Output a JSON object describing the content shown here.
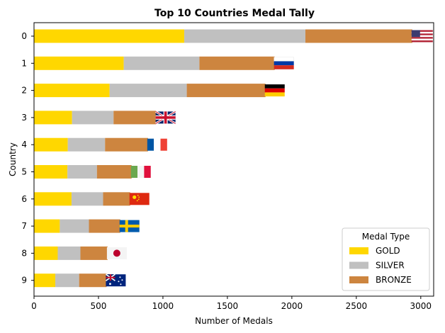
{
  "chart_data": {
    "type": "bar",
    "orientation": "horizontal",
    "stacked": true,
    "title": "Top 10 Countries Medal Tally",
    "xlabel": "Number of Medals",
    "ylabel": "Country",
    "xlim": [
      0,
      3100
    ],
    "xticks": [
      0,
      500,
      1000,
      1500,
      2000,
      2500,
      3000
    ],
    "categories": [
      "0",
      "1",
      "2",
      "3",
      "4",
      "5",
      "6",
      "7",
      "8",
      "9"
    ],
    "series": [
      {
        "name": "GOLD",
        "color": "#FFD700",
        "values": [
          1165,
          696,
          586,
          295,
          262,
          259,
          291,
          200,
          184,
          165
        ]
      },
      {
        "name": "SILVER",
        "color": "#C0C0C0",
        "values": [
          940,
          587,
          599,
          322,
          289,
          229,
          245,
          226,
          176,
          185
        ]
      },
      {
        "name": "BRONZE",
        "color": "#CD853F",
        "values": [
          829,
          584,
          611,
          332,
          333,
          269,
          210,
          243,
          211,
          213
        ]
      }
    ],
    "flags": [
      "us-flag",
      "russia-flag",
      "germany-flag",
      "uk-flag",
      "france-flag",
      "italy-flag",
      "china-flag",
      "sweden-flag",
      "japan-flag",
      "australia-flag"
    ],
    "legend": {
      "title": "Medal Type",
      "position": "lower-right"
    }
  }
}
